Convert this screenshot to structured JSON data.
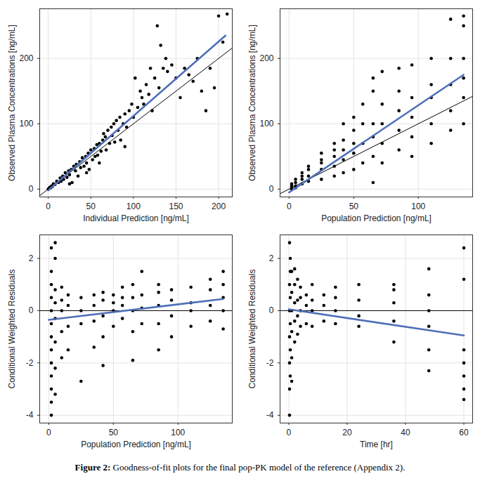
{
  "chart_data": [
    {
      "type": "scatter",
      "x_label": "Individual Prediction [ng/mL]",
      "y_label": "Observed Plasma Concentrations [ng/mL]",
      "xlim": [
        -10,
        216
      ],
      "ylim": [
        -12,
        276
      ],
      "xticks": [
        0,
        50,
        100,
        150,
        200
      ],
      "yticks": [
        0,
        100,
        200
      ],
      "grid": true,
      "series": [
        {
          "type": "scatter",
          "color": "#000000",
          "marker": "circle",
          "x": [
            0,
            1,
            2,
            3,
            4,
            5,
            6,
            8,
            10,
            12,
            14,
            15,
            17,
            18,
            20,
            22,
            24,
            25,
            27,
            28,
            30,
            32,
            33,
            35,
            37,
            38,
            40,
            42,
            44,
            45,
            47,
            48,
            50,
            52,
            54,
            55,
            57,
            58,
            60,
            62,
            64,
            65,
            67,
            68,
            70,
            72,
            74,
            75,
            77,
            78,
            80,
            82,
            84,
            85,
            88,
            90,
            92,
            95,
            98,
            100,
            102,
            105,
            108,
            110,
            112,
            115,
            118,
            120,
            122,
            125,
            128,
            130,
            132,
            135,
            138,
            140,
            145,
            150,
            155,
            160,
            165,
            170,
            175,
            180,
            185,
            190,
            195,
            200,
            205,
            210,
            25,
            45,
            60,
            90
          ],
          "values": [
            0,
            1,
            3,
            2,
            5,
            4,
            8,
            7,
            12,
            10,
            17,
            12,
            20,
            15,
            25,
            18,
            28,
            22,
            30,
            10,
            35,
            28,
            38,
            20,
            42,
            33,
            48,
            35,
            50,
            40,
            55,
            30,
            60,
            45,
            62,
            50,
            68,
            52,
            70,
            58,
            75,
            85,
            80,
            60,
            90,
            70,
            95,
            82,
            100,
            72,
            105,
            90,
            110,
            75,
            100,
            115,
            95,
            120,
            130,
            110,
            170,
            125,
            150,
            140,
            130,
            160,
            145,
            185,
            120,
            170,
            250,
            155,
            220,
            185,
            200,
            180,
            190,
            170,
            140,
            185,
            175,
            165,
            200,
            150,
            120,
            185,
            155,
            265,
            225,
            268,
            8,
            25,
            40,
            65
          ]
        },
        {
          "type": "line",
          "color": "#000000",
          "line_style": "solid",
          "x": [
            -10,
            216
          ],
          "values": [
            -10,
            216
          ]
        },
        {
          "type": "line",
          "color": "#4f6fb8",
          "line_style": "bold",
          "x": [
            0,
            208
          ],
          "values": [
            -2,
            235
          ]
        }
      ]
    },
    {
      "type": "scatter",
      "x_label": "Population Prediction [ng/mL]",
      "y_label": "Observed Plasma Concentrations [ng/mL]",
      "xlim": [
        -7,
        142
      ],
      "ylim": [
        -12,
        276
      ],
      "xticks": [
        0,
        50,
        100
      ],
      "yticks": [
        0,
        100,
        200
      ],
      "grid": true,
      "series": [
        {
          "type": "scatter",
          "color": "#000000",
          "marker": "circle",
          "x": [
            2,
            2,
            2,
            2,
            5,
            5,
            5,
            5,
            10,
            10,
            10,
            10,
            15,
            15,
            15,
            15,
            25,
            25,
            25,
            25,
            25,
            35,
            35,
            35,
            35,
            35,
            42,
            42,
            42,
            42,
            42,
            50,
            50,
            50,
            50,
            50,
            57,
            57,
            57,
            57,
            65,
            65,
            65,
            65,
            65,
            65,
            72,
            72,
            72,
            72,
            72,
            85,
            85,
            85,
            85,
            85,
            95,
            95,
            95,
            95,
            95,
            110,
            110,
            110,
            110,
            110,
            125,
            125,
            125,
            125,
            125,
            135,
            135,
            135,
            135,
            135,
            135
          ],
          "values": [
            0,
            3,
            5,
            8,
            5,
            10,
            15,
            2,
            8,
            15,
            20,
            25,
            12,
            20,
            30,
            35,
            15,
            30,
            40,
            45,
            55,
            20,
            35,
            50,
            60,
            70,
            25,
            45,
            60,
            75,
            100,
            30,
            55,
            70,
            90,
            110,
            40,
            70,
            100,
            130,
            10,
            50,
            80,
            100,
            150,
            170,
            40,
            70,
            100,
            130,
            180,
            60,
            90,
            120,
            150,
            185,
            50,
            80,
            110,
            140,
            190,
            70,
            100,
            140,
            160,
            200,
            90,
            120,
            160,
            200,
            260,
            100,
            140,
            170,
            200,
            250,
            265
          ]
        },
        {
          "type": "line",
          "color": "#000000",
          "line_style": "solid",
          "x": [
            -7,
            142
          ],
          "values": [
            -7,
            142
          ]
        },
        {
          "type": "line",
          "color": "#4f6fb8",
          "line_style": "bold",
          "x": [
            0,
            135
          ],
          "values": [
            -5,
            175
          ]
        }
      ]
    },
    {
      "type": "scatter",
      "x_label": "Population Prediction [ng/mL]",
      "y_label": "Conditional Weighted Residuals",
      "xlim": [
        -7,
        142
      ],
      "ylim": [
        -4.3,
        2.9
      ],
      "xticks": [
        0,
        50,
        100
      ],
      "yticks": [
        -4,
        -2,
        0,
        2
      ],
      "grid": true,
      "series": [
        {
          "type": "scatter",
          "color": "#000000",
          "marker": "circle",
          "x": [
            2,
            2,
            2,
            2,
            2,
            2,
            2,
            2,
            2,
            2,
            2,
            2,
            2,
            5,
            5,
            5,
            5,
            5,
            5,
            5,
            5,
            10,
            10,
            10,
            10,
            10,
            15,
            15,
            15,
            15,
            25,
            25,
            25,
            25,
            35,
            35,
            35,
            35,
            42,
            42,
            42,
            42,
            42,
            50,
            50,
            50,
            50,
            57,
            57,
            57,
            57,
            65,
            65,
            65,
            65,
            65,
            72,
            72,
            72,
            72,
            85,
            85,
            85,
            85,
            85,
            95,
            95,
            95,
            95,
            110,
            110,
            110,
            110,
            125,
            125,
            125,
            125,
            135,
            135,
            135,
            135,
            135
          ],
          "values": [
            -4,
            -3.5,
            -3,
            -2.5,
            -2,
            -1.5,
            -1,
            -0.5,
            0,
            0.5,
            1,
            1.5,
            2.4,
            -3.2,
            -2.2,
            -1.2,
            -0.3,
            0.3,
            0.8,
            2.6,
            2,
            -1.8,
            -0.8,
            0,
            0.4,
            0.9,
            -1.5,
            -0.6,
            0.2,
            0.6,
            -2.7,
            -0.5,
            0,
            0.5,
            -1.4,
            -0.4,
            0.2,
            0.6,
            -2.1,
            -1,
            -0.2,
            0.4,
            0.7,
            -0.6,
            0,
            0.3,
            0.6,
            -0.3,
            0.2,
            0.5,
            0.9,
            -1.9,
            -0.8,
            0,
            0.5,
            1,
            -0.5,
            0.1,
            0.6,
            1.5,
            -1.5,
            -0.5,
            0.2,
            0.7,
            1,
            -1,
            -0.2,
            0.4,
            0.8,
            -0.6,
            0,
            0.3,
            0.9,
            -0.4,
            0.2,
            0.8,
            1.2,
            -0.7,
            0,
            0.5,
            1,
            1.5
          ]
        },
        {
          "type": "line",
          "color": "#000000",
          "line_style": "solid",
          "x": [
            -7,
            142
          ],
          "values": [
            0,
            0
          ]
        },
        {
          "type": "line",
          "color": "#4f6fb8",
          "line_style": "bold",
          "x": [
            0,
            135
          ],
          "values": [
            -0.35,
            0.45
          ]
        }
      ]
    },
    {
      "type": "scatter",
      "x_label": "Time [hr]",
      "y_label": "Conditional Weighted Residuals",
      "xlim": [
        -3,
        63
      ],
      "ylim": [
        -4.3,
        2.9
      ],
      "xticks": [
        0,
        20,
        40,
        60
      ],
      "yticks": [
        -4,
        -2,
        0,
        2
      ],
      "grid": true,
      "series": [
        {
          "type": "scatter",
          "color": "#000000",
          "marker": "circle",
          "x": [
            0.25,
            0.25,
            0.25,
            0.25,
            0.25,
            0.25,
            0.25,
            0.5,
            0.5,
            0.5,
            0.5,
            0.5,
            0.5,
            1,
            1,
            1,
            1,
            1,
            1,
            2,
            2,
            2,
            2,
            2,
            3,
            3,
            3,
            3,
            4,
            4,
            4,
            4,
            6,
            6,
            6,
            8,
            8,
            8,
            8,
            12,
            12,
            12,
            16,
            16,
            16,
            16,
            24,
            24,
            24,
            24,
            36,
            36,
            36,
            36,
            36,
            48,
            48,
            48,
            48,
            48,
            48,
            60,
            60,
            60,
            60,
            60,
            60,
            60
          ],
          "values": [
            -4,
            -3,
            -2,
            -1,
            0,
            1,
            2.6,
            -2.5,
            -1.5,
            -0.5,
            0.5,
            1.5,
            2,
            -2.7,
            -1.8,
            -0.8,
            0,
            0.7,
            1.5,
            -1.2,
            -0.4,
            0.3,
            1,
            1.6,
            -0.9,
            -0.2,
            0.4,
            1.2,
            -0.6,
            0,
            0.5,
            0.9,
            -0.5,
            0.2,
            0.6,
            -0.6,
            0,
            0.4,
            1,
            -0.4,
            0.2,
            0.6,
            -0.5,
            0,
            0.5,
            0.9,
            -0.6,
            -0.2,
            0.4,
            1,
            -1.2,
            -0.4,
            0.3,
            0.8,
            1,
            -2.3,
            -1.5,
            -0.6,
            0,
            0.6,
            1.6,
            -3.4,
            -3,
            -2.5,
            -2,
            -1.5,
            1.2,
            2.4
          ]
        },
        {
          "type": "line",
          "color": "#000000",
          "line_style": "solid",
          "x": [
            -3,
            63
          ],
          "values": [
            0,
            0
          ]
        },
        {
          "type": "line",
          "color": "#4f6fb8",
          "line_style": "bold",
          "x": [
            0,
            60
          ],
          "values": [
            0.05,
            -0.95
          ]
        }
      ]
    }
  ],
  "caption": "Figure 2: Goodness-of-fit plots for the final pop-PK model of the reference (Appendix 2)."
}
